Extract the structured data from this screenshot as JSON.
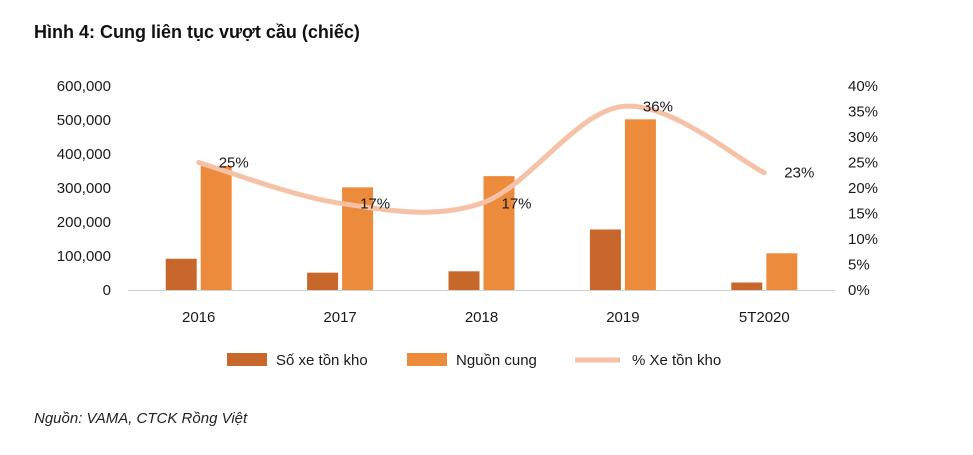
{
  "header": {
    "title": "Hình 4: Cung liên tục vượt cầu (chiếc)"
  },
  "footer": {
    "source": "Nguồn: VAMA, CTCK Rồng Việt"
  },
  "colors": {
    "inventory": "#C8672B",
    "supply": "#ED8B3D",
    "pct": "#F5C2A8"
  },
  "chart_data": {
    "type": "bar",
    "categories": [
      "2016",
      "2017",
      "2018",
      "2019",
      "5T2020"
    ],
    "series": [
      {
        "name": "Số xe tồn kho",
        "type": "bar",
        "axis": "left",
        "values": [
          92000,
          51000,
          55000,
          178000,
          22000
        ]
      },
      {
        "name": "Nguồn cung",
        "type": "bar",
        "axis": "left",
        "values": [
          365000,
          302000,
          335000,
          502000,
          108000
        ]
      },
      {
        "name": "% Xe tồn kho",
        "type": "line",
        "axis": "right",
        "smooth": true,
        "values": [
          25,
          17,
          17,
          36,
          23
        ],
        "labels": [
          "25%",
          "17%",
          "17%",
          "36%",
          "23%"
        ]
      }
    ],
    "y_left": {
      "min": 0,
      "max": 600000,
      "ticks": [
        "0",
        "100,000",
        "200,000",
        "300,000",
        "400,000",
        "500,000",
        "600,000"
      ]
    },
    "y_right": {
      "min": 0,
      "max": 40,
      "ticks": [
        "0%",
        "5%",
        "10%",
        "15%",
        "20%",
        "25%",
        "30%",
        "35%",
        "40%"
      ]
    },
    "legend_position": "bottom",
    "grid": false
  }
}
